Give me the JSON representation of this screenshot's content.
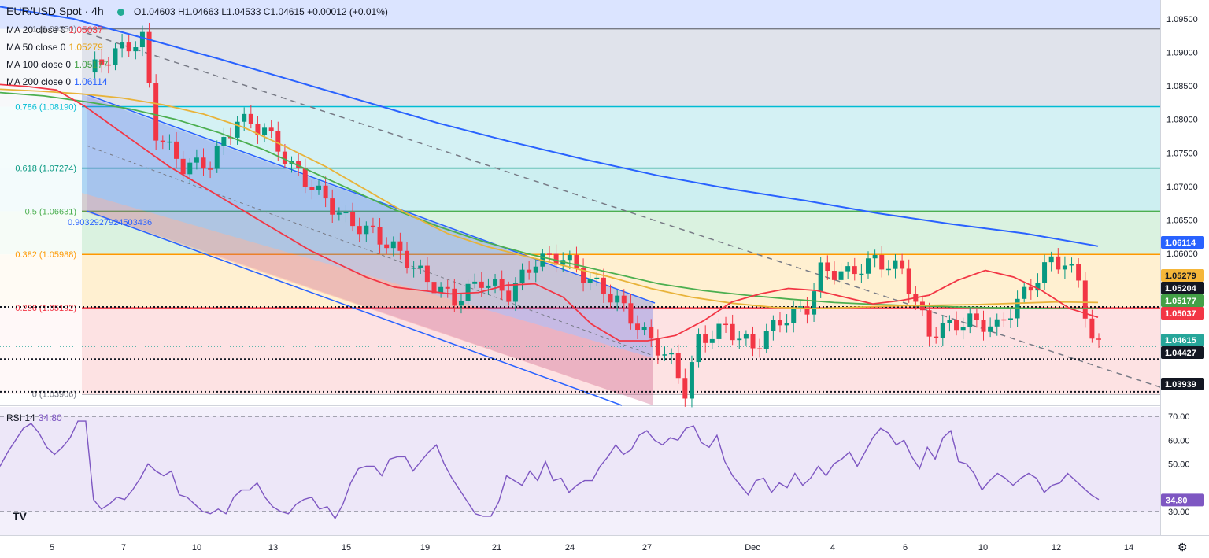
{
  "header": {
    "symbol": "EUR/USD Spot · 4h",
    "ohlc": "O1.04603 H1.04663 L1.04533 C1.04615 +0.00012 (+0.01%)"
  },
  "moving_averages": [
    {
      "label": "MA 20 close 0",
      "value": "1.05037",
      "color": "#f23645"
    },
    {
      "label": "MA 50 close 0",
      "value": "1.05279",
      "color": "#e8b33a"
    },
    {
      "label": "MA 100 close 0",
      "value": "1.05177",
      "color": "#4caf50"
    },
    {
      "label": "MA 200 close 0",
      "value": "1.06114",
      "color": "#2962ff"
    }
  ],
  "rsi": {
    "label": "RSI 14",
    "value": "34.80",
    "color": "#7e57c2"
  },
  "logo": "TV",
  "settings_icon": "gear-icon",
  "chart_data": {
    "type": "candlestick",
    "y_range": [
      1.0375,
      1.0978
    ],
    "y_ticks": [
      "1.09500",
      "1.09000",
      "1.08500",
      "1.08000",
      "1.07500",
      "1.07000",
      "1.06500",
      "1.06000"
    ],
    "x_ticks": [
      "5",
      "7",
      "10",
      "13",
      "15",
      "19",
      "21",
      "24",
      "27",
      "Dec",
      "4",
      "6",
      "10",
      "12",
      "14"
    ],
    "fibonacci": [
      {
        "label": "1 (1.09350)",
        "value": 1.0935
      },
      {
        "label": "0.786 (1.08190)",
        "value": 1.0819
      },
      {
        "label": "0.618 (1.07274)",
        "value": 1.07274
      },
      {
        "label": "0.5 (1.06631)",
        "value": 1.06631
      },
      {
        "label": "0.382 (1.05988)",
        "value": 1.05988
      },
      {
        "label": "0.236 (1.05192)",
        "value": 1.05192
      },
      {
        "label": "0 (1.03906)",
        "value": 1.03906
      }
    ],
    "fib_zone_colors": [
      "#e0e3eb",
      "#d4f1f4",
      "#cdeff1",
      "#daf2e0",
      "#fff0d1",
      "#fde2e3"
    ],
    "fib_line_colors": [
      "#787b86",
      "#00bcd4",
      "#089981",
      "#4caf50",
      "#ff9800",
      "#f23645",
      "#787b86"
    ],
    "channel_label": "0.9032927924503436",
    "price_tags": [
      {
        "value": "1.06114",
        "price": 1.06114,
        "color": "#2962ff"
      },
      {
        "value": "1.05279",
        "price": 1.05279,
        "color": "#f5b639"
      },
      {
        "value": "1.05204",
        "price": 1.05204,
        "color": "#131722"
      },
      {
        "value": "1.05177",
        "price": 1.05177,
        "color": "#43a047"
      },
      {
        "value": "1.05037",
        "price": 1.05037,
        "color": "#f23645"
      },
      {
        "value": "1.04615",
        "price": 1.04615,
        "color": "#26a69a"
      },
      {
        "value": "1.04427",
        "price": 1.04427,
        "color": "#131722"
      },
      {
        "value": "1.03939",
        "price": 1.03939,
        "color": "#131722"
      }
    ],
    "horizontal_levels": [
      1.05204,
      1.04427,
      1.03939
    ],
    "rsi_range": [
      20,
      74
    ],
    "rsi_ticks": [
      "70.00",
      "60.00",
      "50.00",
      "30.00"
    ],
    "rsi_levels": [
      70,
      50,
      30
    ],
    "ma20": [
      1.0852,
      1.0849,
      1.0844,
      1.082,
      1.079,
      1.076,
      1.073,
      1.0705,
      1.068,
      1.0655,
      1.063,
      1.0605,
      1.0585,
      1.0565,
      1.055,
      1.0545,
      1.054,
      1.0542,
      1.0553,
      1.0555,
      1.0535,
      1.0495,
      1.047,
      1.047,
      1.0478,
      1.05,
      1.0528,
      1.054,
      1.0548,
      1.0545,
      1.0535,
      1.0525,
      1.053,
      1.0538,
      1.056,
      1.0575,
      1.0565,
      1.0545,
      1.0518,
      1.0505
    ],
    "ma50": [
      1.0845,
      1.0842,
      1.0838,
      1.0832,
      1.0822,
      1.0808,
      1.0788,
      1.076,
      1.073,
      1.0695,
      1.066,
      1.063,
      1.061,
      1.0595,
      1.058,
      1.0565,
      1.0548,
      1.0535,
      1.0526,
      1.052,
      1.0518,
      1.052,
      1.0522,
      1.0523,
      1.0524,
      1.0526,
      1.0528,
      1.0527
    ],
    "ma100": [
      1.084,
      1.0835,
      1.0826,
      1.0815,
      1.08,
      1.078,
      1.0755,
      1.0725,
      1.0695,
      1.0665,
      1.064,
      1.0618,
      1.06,
      1.0585,
      1.057,
      1.0555,
      1.0545,
      1.0538,
      1.0532,
      1.0527,
      1.0524,
      1.0522,
      1.052,
      1.0519,
      1.0518,
      1.0518
    ],
    "ma200": [
      1.0968,
      1.095,
      1.092,
      1.089,
      1.0858,
      1.0826,
      1.0794,
      1.0766,
      1.074,
      1.0716,
      1.0696,
      1.0679,
      1.066,
      1.0644,
      1.063,
      1.0611
    ],
    "rsi_values": [
      49,
      55,
      60,
      65,
      67,
      63,
      57,
      54,
      57,
      61,
      68,
      68,
      35,
      31,
      33,
      36,
      35,
      39,
      44,
      50,
      47,
      45,
      47,
      37,
      36,
      33,
      30,
      29,
      31,
      29,
      36,
      39,
      39,
      42,
      36,
      32,
      30,
      29,
      33,
      35,
      36,
      31,
      32,
      27,
      33,
      42,
      48,
      49,
      49,
      45,
      52,
      53,
      53,
      47,
      51,
      55,
      58,
      50,
      44,
      39,
      34,
      29,
      28,
      28,
      34,
      45,
      43,
      41,
      47,
      43,
      51,
      43,
      44,
      38,
      41,
      43,
      43,
      49,
      53,
      58,
      54,
      56,
      62,
      64,
      60,
      58,
      61,
      60,
      65,
      66,
      59,
      57,
      62,
      51,
      45,
      41,
      37,
      43,
      44,
      38,
      42,
      40,
      46,
      41,
      44,
      49,
      45,
      50,
      52,
      55,
      49,
      55,
      61,
      65,
      63,
      58,
      60,
      53,
      48,
      57,
      52,
      61,
      64,
      51,
      50,
      46,
      39,
      43,
      46,
      44,
      41,
      44,
      46,
      44,
      38,
      41,
      42,
      46,
      43,
      40,
      37,
      35
    ]
  }
}
